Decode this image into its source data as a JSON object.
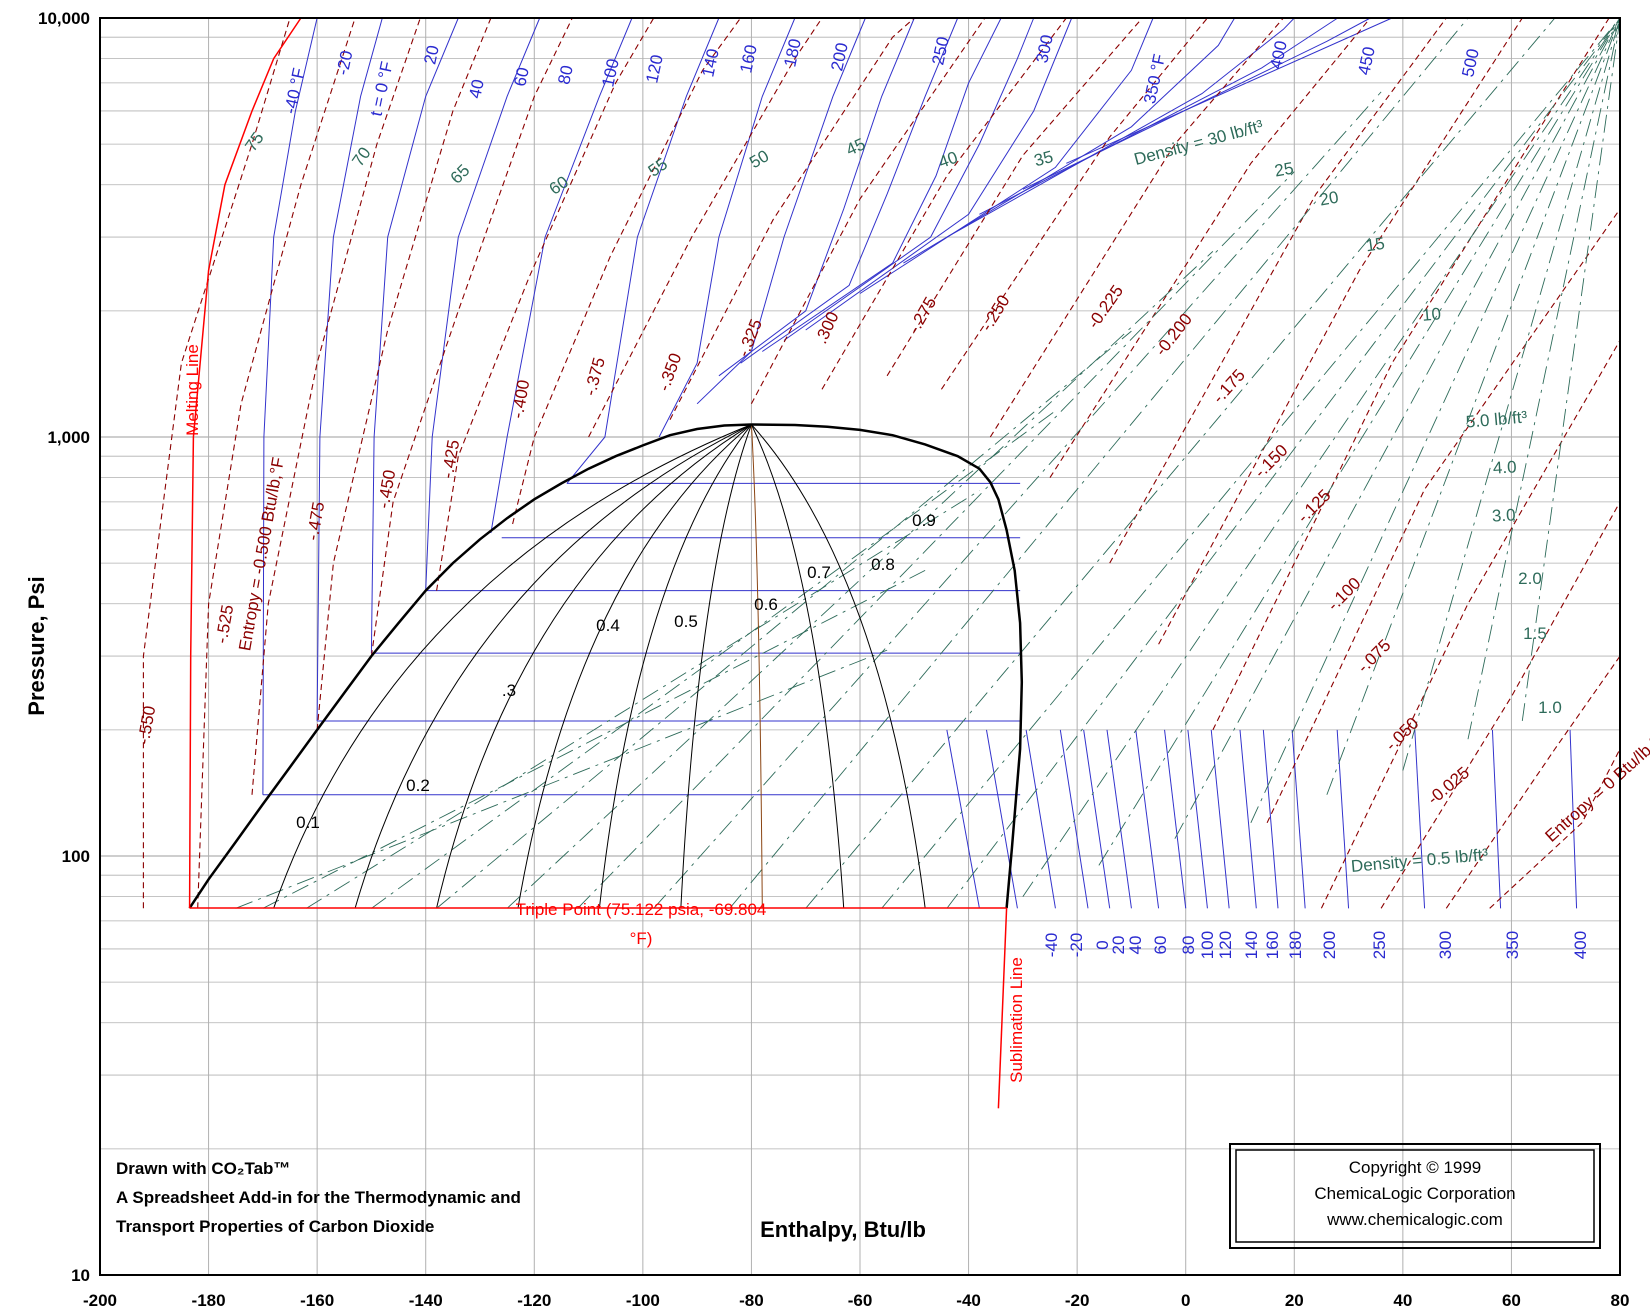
{
  "chart_data": {
    "type": "line",
    "title": "",
    "xlabel": "Enthalpy, Btu/lb",
    "ylabel": "Pressure, Psi",
    "xlim": [
      -200,
      80
    ],
    "ylim": [
      10,
      10000
    ],
    "y_scale": "log",
    "grid": true,
    "x_ticks": [
      "-200",
      "-180",
      "-160",
      "-140",
      "-120",
      "-100",
      "-80",
      "-60",
      "-40",
      "-20",
      "0",
      "20",
      "40",
      "60",
      "80"
    ],
    "y_ticks": [
      {
        "value": 10,
        "label": "10"
      },
      {
        "value": 100,
        "label": "100"
      },
      {
        "value": 1000,
        "label": "1,000"
      },
      {
        "value": 10000,
        "label": "10,000"
      }
    ],
    "saturation_dome": {
      "liquid": [
        [
          -183.5,
          75.122
        ],
        [
          -180,
          88
        ],
        [
          -175,
          108
        ],
        [
          -170,
          133
        ],
        [
          -165,
          163
        ],
        [
          -160,
          200
        ],
        [
          -155,
          245
        ],
        [
          -150,
          300
        ],
        [
          -145,
          360
        ],
        [
          -140,
          430
        ],
        [
          -135,
          500
        ],
        [
          -130,
          570
        ],
        [
          -125,
          640
        ],
        [
          -120,
          710
        ],
        [
          -115,
          775
        ],
        [
          -110,
          840
        ],
        [
          -105,
          900
        ],
        [
          -100,
          955
        ],
        [
          -95,
          1010
        ],
        [
          -90,
          1045
        ],
        [
          -85,
          1065
        ],
        [
          -80,
          1071
        ]
      ],
      "vapor": [
        [
          -80,
          1071
        ],
        [
          -72,
          1068
        ],
        [
          -66,
          1058
        ],
        [
          -60,
          1040
        ],
        [
          -54,
          1010
        ],
        [
          -48,
          960
        ],
        [
          -42,
          900
        ],
        [
          -38,
          840
        ],
        [
          -36,
          780
        ],
        [
          -34.5,
          710
        ],
        [
          -33,
          600
        ],
        [
          -31.5,
          480
        ],
        [
          -30.5,
          360
        ],
        [
          -30.2,
          260
        ],
        [
          -30.5,
          180
        ],
        [
          -31.2,
          140
        ],
        [
          -32,
          105
        ],
        [
          -33,
          75.122
        ]
      ]
    },
    "melting_line": [
      [
        -183.5,
        75.122
      ],
      [
        -183.3,
        300
      ],
      [
        -182.8,
        1000
      ],
      [
        -180,
        2500
      ],
      [
        -177,
        4000
      ],
      [
        -172,
        6000
      ],
      [
        -168,
        8000
      ],
      [
        -163,
        10000
      ]
    ],
    "triple_point_line": {
      "x": [
        -183.5,
        -33
      ],
      "p": 75.122
    },
    "sublimation_line": [
      [
        -33,
        75.122
      ],
      [
        -34.5,
        25
      ]
    ],
    "isotherms": [
      {
        "label": "-40 °F",
        "values": [
          [
            -170,
            140
          ],
          [
            -169.8,
            1000
          ],
          [
            -168,
            3000
          ],
          [
            -164,
            6000
          ],
          [
            -160,
            10000
          ]
        ]
      },
      {
        "label": "-20",
        "values": [
          [
            -160,
            210
          ],
          [
            -159.5,
            1000
          ],
          [
            -157,
            3000
          ],
          [
            -152,
            6500
          ],
          [
            -148,
            10000
          ]
        ]
      },
      {
        "label": "t = 0 °F",
        "values": [
          [
            -150,
            305
          ],
          [
            -149.5,
            1000
          ],
          [
            -147,
            3000
          ],
          [
            -140,
            6500
          ],
          [
            -134,
            10000
          ]
        ]
      },
      {
        "label": "20",
        "values": [
          [
            -140,
            430
          ],
          [
            -138.8,
            1000
          ],
          [
            -134,
            3000
          ],
          [
            -125,
            6500
          ],
          [
            -119,
            10000
          ]
        ]
      },
      {
        "label": "40",
        "values": [
          [
            -128,
            590
          ],
          [
            -125,
            1000
          ],
          [
            -118,
            3000
          ],
          [
            -108,
            6500
          ],
          [
            -102,
            10000
          ]
        ]
      },
      {
        "label": "60",
        "values": [
          [
            -114,
            775
          ],
          [
            -107,
            1000
          ],
          [
            -101,
            3000
          ],
          [
            -92,
            6500
          ],
          [
            -86,
            10000
          ]
        ]
      },
      {
        "label": "80",
        "values": [
          [
            -97,
            1000
          ],
          [
            -90,
            1500
          ],
          [
            -86,
            3000
          ],
          [
            -78,
            6500
          ],
          [
            -72,
            10000
          ]
        ]
      },
      {
        "label": "100",
        "values": [
          [
            -90,
            1200
          ],
          [
            -80,
            1600
          ],
          [
            -74,
            3000
          ],
          [
            -65,
            6500
          ],
          [
            -59,
            10000
          ]
        ]
      },
      {
        "label": "120",
        "values": [
          [
            -86,
            1400
          ],
          [
            -70,
            2000
          ],
          [
            -63,
            3500
          ],
          [
            -56,
            6500
          ],
          [
            -50,
            10000
          ]
        ]
      },
      {
        "label": "140",
        "values": [
          [
            -82,
            1500
          ],
          [
            -62,
            2300
          ],
          [
            -55,
            3800
          ],
          [
            -48,
            6500
          ],
          [
            -42,
            10000
          ]
        ]
      },
      {
        "label": "160",
        "values": [
          [
            -78,
            1600
          ],
          [
            -54,
            2600
          ],
          [
            -46,
            4200
          ],
          [
            -40,
            7000
          ],
          [
            -34,
            10000
          ]
        ]
      },
      {
        "label": "180",
        "values": [
          [
            -74,
            1700
          ],
          [
            -47,
            3000
          ],
          [
            -38,
            5000
          ],
          [
            -31,
            8000
          ],
          [
            -28,
            10000
          ]
        ]
      },
      {
        "label": "200",
        "values": [
          [
            -70,
            1800
          ],
          [
            -40,
            3400
          ],
          [
            -28,
            6000
          ],
          [
            -21,
            10000
          ]
        ]
      },
      {
        "label": "250",
        "values": [
          [
            -60,
            2200
          ],
          [
            -24,
            4400
          ],
          [
            -10,
            7500
          ],
          [
            -6,
            10000
          ]
        ]
      },
      {
        "label": "300",
        "values": [
          [
            -52,
            2600
          ],
          [
            -10,
            5500
          ],
          [
            6,
            8600
          ],
          [
            9,
            10000
          ]
        ]
      },
      {
        "label": "350 °F",
        "values": [
          [
            -44,
            3000
          ],
          [
            3,
            6600
          ],
          [
            18,
            9400
          ],
          [
            20,
            10000
          ]
        ]
      },
      {
        "label": "400",
        "values": [
          [
            -38,
            3400
          ],
          [
            14,
            7600
          ],
          [
            28,
            10000
          ]
        ]
      },
      {
        "label": "450",
        "values": [
          [
            -30,
            3900
          ],
          [
            26,
            8800
          ],
          [
            34,
            10000
          ]
        ]
      },
      {
        "label": "500",
        "values": [
          [
            -22,
            4500
          ],
          [
            38,
            10000
          ]
        ]
      }
    ],
    "isotherm_low_labels": [
      "-40",
      "-20",
      "0",
      "20",
      "40",
      "60",
      "80",
      "100",
      "120",
      "140",
      "160",
      "180",
      "200",
      "250",
      "300",
      "350",
      "400"
    ],
    "entropy_lines": [
      {
        "label": "-.550",
        "values": [
          [
            -192,
            75
          ],
          [
            -192,
            300
          ],
          [
            -185,
            1500
          ],
          [
            -172,
            5000
          ],
          [
            -165,
            10000
          ]
        ]
      },
      {
        "label": "-.525",
        "values": [
          [
            -182,
            75
          ],
          [
            -180,
            400
          ],
          [
            -174,
            1200
          ],
          [
            -163,
            4000
          ],
          [
            -153,
            10000
          ]
        ]
      },
      {
        "label": "Entropy = -0.500 Btu/lb,°F",
        "values": [
          [
            -172,
            140
          ],
          [
            -169,
            400
          ],
          [
            -160,
            1500
          ],
          [
            -149,
            5000
          ],
          [
            -141,
            10000
          ]
        ]
      },
      {
        "label": "-.475",
        "values": [
          [
            -160,
            200
          ],
          [
            -157,
            500
          ],
          [
            -147,
            1800
          ],
          [
            -135,
            6000
          ],
          [
            -128,
            10000
          ]
        ]
      },
      {
        "label": "-.450",
        "values": [
          [
            -150,
            300
          ],
          [
            -146,
            700
          ],
          [
            -134,
            2000
          ],
          [
            -120,
            6500
          ],
          [
            -113,
            10000
          ]
        ]
      },
      {
        "label": "-.425",
        "values": [
          [
            -138,
            430
          ],
          [
            -134,
            900
          ],
          [
            -121,
            2400
          ],
          [
            -105,
            7000
          ],
          [
            -98,
            10000
          ]
        ]
      },
      {
        "label": "-.400",
        "values": [
          [
            -124,
            620
          ],
          [
            -120,
            1000
          ],
          [
            -106,
            2700
          ],
          [
            -89,
            7500
          ],
          [
            -82,
            10000
          ]
        ]
      },
      {
        "label": "-.375",
        "values": [
          [
            -110,
            1000
          ],
          [
            -91,
            3000
          ],
          [
            -72,
            8000
          ],
          [
            -67,
            10000
          ]
        ]
      },
      {
        "label": "-.350",
        "values": [
          [
            -95,
            1100
          ],
          [
            -76,
            3300
          ],
          [
            -54,
            9000
          ],
          [
            -50,
            10000
          ]
        ]
      },
      {
        "label": "-.325",
        "values": [
          [
            -80,
            1200
          ],
          [
            -60,
            3700
          ],
          [
            -37,
            10000
          ]
        ]
      },
      {
        "label": ".300",
        "values": [
          [
            -67,
            1300
          ],
          [
            -44,
            4200
          ],
          [
            -22,
            10000
          ]
        ]
      },
      {
        "label": "-.275",
        "values": [
          [
            -55,
            1400
          ],
          [
            -30,
            4700
          ],
          [
            -8,
            10000
          ]
        ]
      },
      {
        "label": "-.250",
        "values": [
          [
            -45,
            1300
          ],
          [
            -14,
            5200
          ],
          [
            4,
            10000
          ]
        ]
      },
      {
        "label": "-0.225",
        "values": [
          [
            -36,
            1000
          ],
          [
            -2,
            5000
          ],
          [
            18,
            10000
          ]
        ]
      },
      {
        "label": "-0.200",
        "values": [
          [
            -25,
            800
          ],
          [
            12,
            4500
          ],
          [
            34,
            10000
          ]
        ]
      },
      {
        "label": "-.175",
        "values": [
          [
            -14,
            500
          ],
          [
            24,
            3800
          ],
          [
            48,
            10000
          ]
        ]
      },
      {
        "label": "-.150",
        "values": [
          [
            -5,
            320
          ],
          [
            32,
            2500
          ],
          [
            62,
            10000
          ]
        ]
      },
      {
        "label": "-.125",
        "values": [
          [
            5,
            200
          ],
          [
            38,
            1500
          ],
          [
            78,
            10000
          ]
        ]
      },
      {
        "label": "-.100",
        "values": [
          [
            15,
            120
          ],
          [
            44,
            750
          ],
          [
            80,
            3500
          ]
        ]
      },
      {
        "label": "-.075",
        "values": [
          [
            25,
            75
          ],
          [
            52,
            400
          ],
          [
            80,
            1700
          ]
        ]
      },
      {
        "label": "-.050",
        "values": [
          [
            36,
            75
          ],
          [
            60,
            240
          ],
          [
            80,
            700
          ]
        ]
      },
      {
        "label": "-0.025",
        "values": [
          [
            48,
            75
          ],
          [
            68,
            180
          ],
          [
            80,
            300
          ]
        ]
      },
      {
        "label": "Entropy = 0 Btu/lb,°F",
        "values": [
          [
            56,
            75
          ],
          [
            73,
            120
          ],
          [
            80,
            180
          ]
        ]
      }
    ],
    "density_labels": [
      "75",
      "70",
      "65",
      "60",
      "55",
      "50",
      "45",
      "40",
      "35",
      "Density = 30 lb/ft³",
      "25",
      "20",
      "15",
      "10",
      "5.0 lb/ft³",
      "4.0",
      "3.0",
      "2.0",
      "1.5",
      "1.0",
      "Density = 0.5 lb/ft³"
    ],
    "quality_lines": [
      {
        "label": "0.1",
        "x_bottom": -168,
        "x_top": -80
      },
      {
        "label": "0.2",
        "x_bottom": -153,
        "x_top": -80
      },
      {
        "label": ".3",
        "x_bottom": -138,
        "x_top": -80
      },
      {
        "label": "0.4",
        "x_bottom": -123,
        "x_top": -80
      },
      {
        "label": "0.5",
        "x_bottom": -108,
        "x_top": -80
      },
      {
        "label": "0.6",
        "x_bottom": -93,
        "x_top": -80
      },
      {
        "label": "0.7",
        "x_bottom": -78,
        "x_top": -80
      },
      {
        "label": "0.8",
        "x_bottom": -63,
        "x_top": -80
      },
      {
        "label": "0.9",
        "x_bottom": -48,
        "x_top": -80
      }
    ],
    "annotations": {
      "melting_line": "Melting Line",
      "sublimation_line": "Sublimation Line",
      "triple_point_1": "Triple Point (75.122 psia, -69.804",
      "triple_point_2": "°F)"
    }
  },
  "note": {
    "line1": "Drawn with CO₂Tab™",
    "line2": "A Spreadsheet Add-in for the Thermodynamic and",
    "line3": "Transport Properties of Carbon Dioxide"
  },
  "copyright": {
    "line1": "Copyright © 1999",
    "line2": "ChemicaLogic Corporation",
    "line3": "www.chemicalogic.com"
  },
  "colors": {
    "isotherm": "#3333cc",
    "entropy": "#8b0000",
    "density": "#2e6b5a",
    "quality": "#000000",
    "melting": "#ff0000",
    "grid": "#b0b0b0",
    "critical_quality": "#8b4513"
  }
}
